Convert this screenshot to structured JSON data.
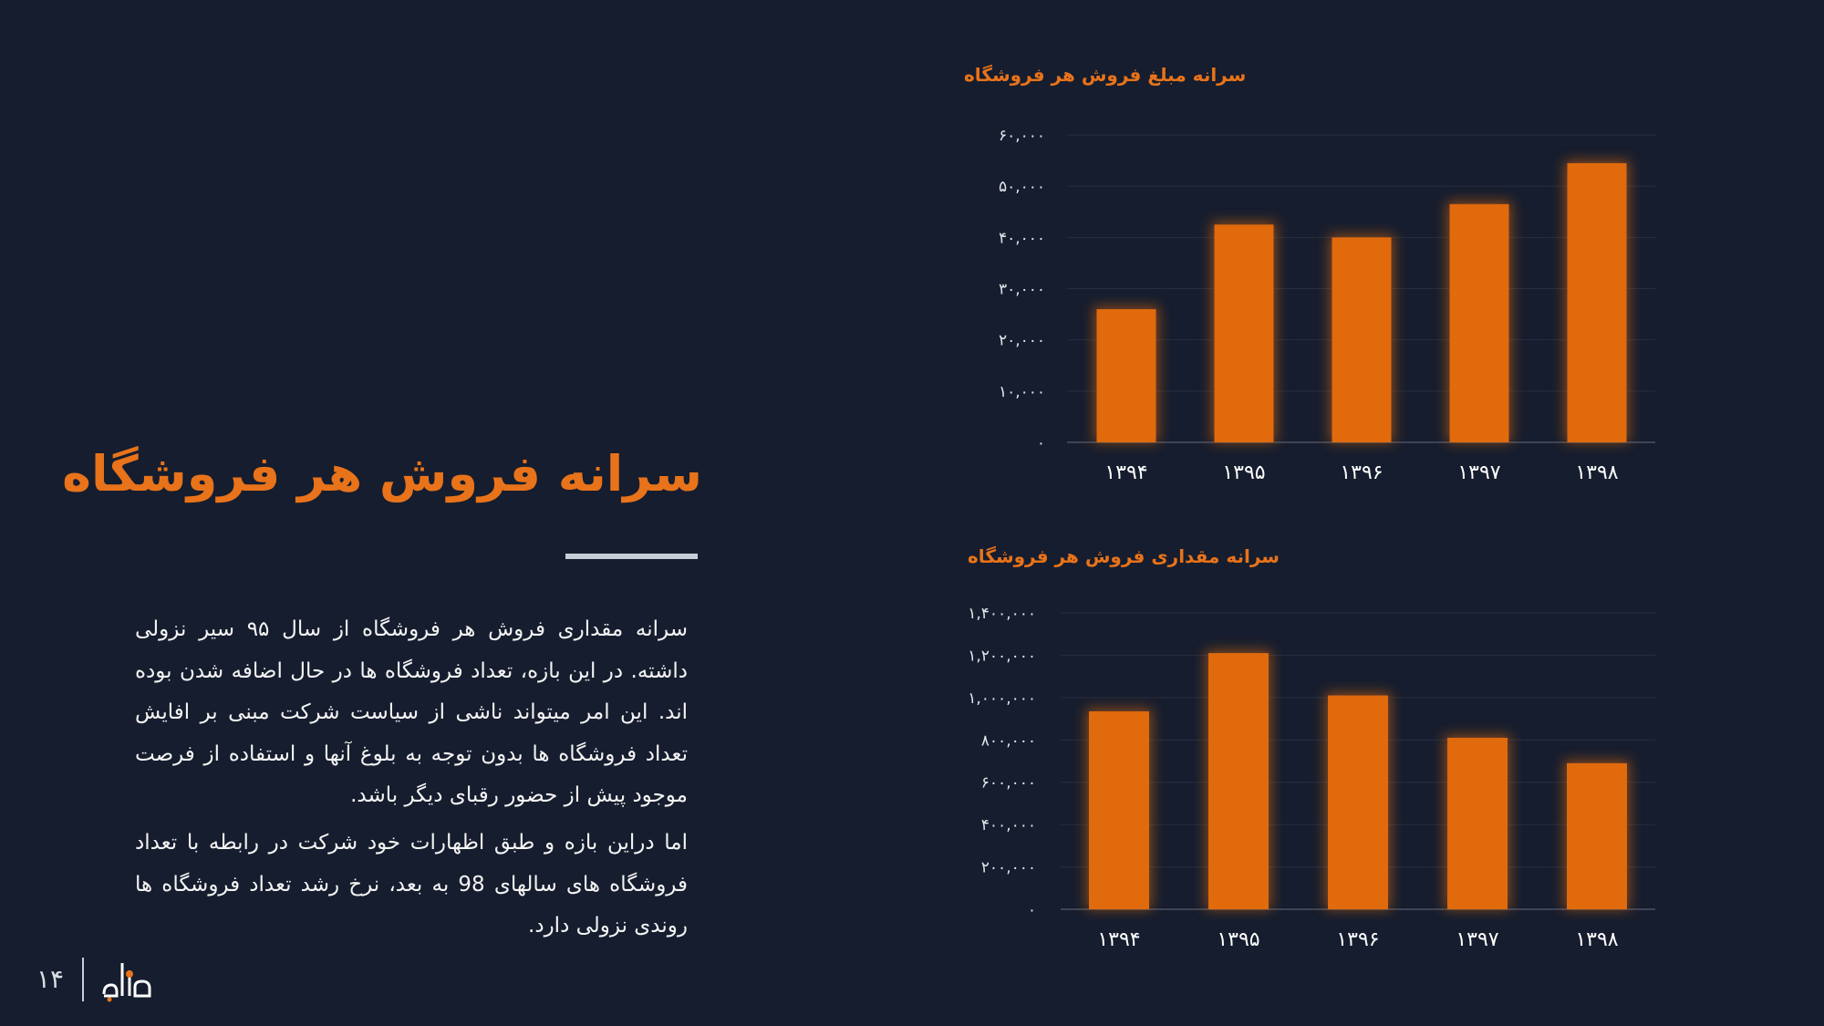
{
  "slide": {
    "title": "سرانه فروش هر فروشگاه",
    "paragraphs": [
      "سرانه مقداری فروش هر فروشگاه از سال ۹۵ سیر نزولی داشته. در این بازه، تعداد فروشگاه ها در حال اضافه شدن بوده اند.  این امر میتواند ناشی از سیاست شرکت مبنی بر افایش تعداد فروشگاه ها بدون توجه به بلوغ آنها و استفاده از فرصت موجود پیش از حضور رقبای دیگر باشد.",
      "اما دراین بازه و طبق اظهارات خود شرکت در رابطه با تعداد فروشگاه های سالهای 98 به بعد، نرخ رشد تعداد فروشگاه ها روندی نزولی دارد."
    ],
    "page_number": "۱۴",
    "logo_icon": "company-logo-icon",
    "colors": {
      "background": "#161d2e",
      "accent": "#e8731a",
      "bar": "#e06a0c",
      "text": "#ffffff"
    }
  },
  "chart_data": [
    {
      "type": "bar",
      "title": "سرانه مبلغ فروش هر فروشگاه",
      "categories": [
        "۱۳۹۴",
        "۱۳۹۵",
        "۱۳۹۶",
        "۱۳۹۷",
        "۱۳۹۸"
      ],
      "values": [
        26000,
        42500,
        40000,
        46500,
        54500
      ],
      "ylim": [
        0,
        60000
      ],
      "yticks": [
        0,
        10000,
        20000,
        30000,
        40000,
        50000,
        60000
      ],
      "ytick_labels": [
        "۰",
        "۱۰,۰۰۰",
        "۲۰,۰۰۰",
        "۳۰,۰۰۰",
        "۴۰,۰۰۰",
        "۵۰,۰۰۰",
        "۶۰,۰۰۰"
      ],
      "xlabel": "",
      "ylabel": "",
      "grid": true,
      "legend": "none"
    },
    {
      "type": "bar",
      "title": "سرانه مقداری فروش هر فروشگاه",
      "categories": [
        "۱۳۹۴",
        "۱۳۹۵",
        "۱۳۹۶",
        "۱۳۹۷",
        "۱۳۹۸"
      ],
      "values": [
        935000,
        1210000,
        1010000,
        810000,
        690000
      ],
      "ylim": [
        0,
        1400000
      ],
      "yticks": [
        0,
        200000,
        400000,
        600000,
        800000,
        1000000,
        1200000,
        1400000
      ],
      "ytick_labels": [
        "۰",
        "۲۰۰,۰۰۰",
        "۴۰۰,۰۰۰",
        "۶۰۰,۰۰۰",
        "۸۰۰,۰۰۰",
        "۱,۰۰۰,۰۰۰",
        "۱,۲۰۰,۰۰۰",
        "۱,۴۰۰,۰۰۰"
      ],
      "xlabel": "",
      "ylabel": "",
      "grid": true,
      "legend": "none"
    }
  ]
}
